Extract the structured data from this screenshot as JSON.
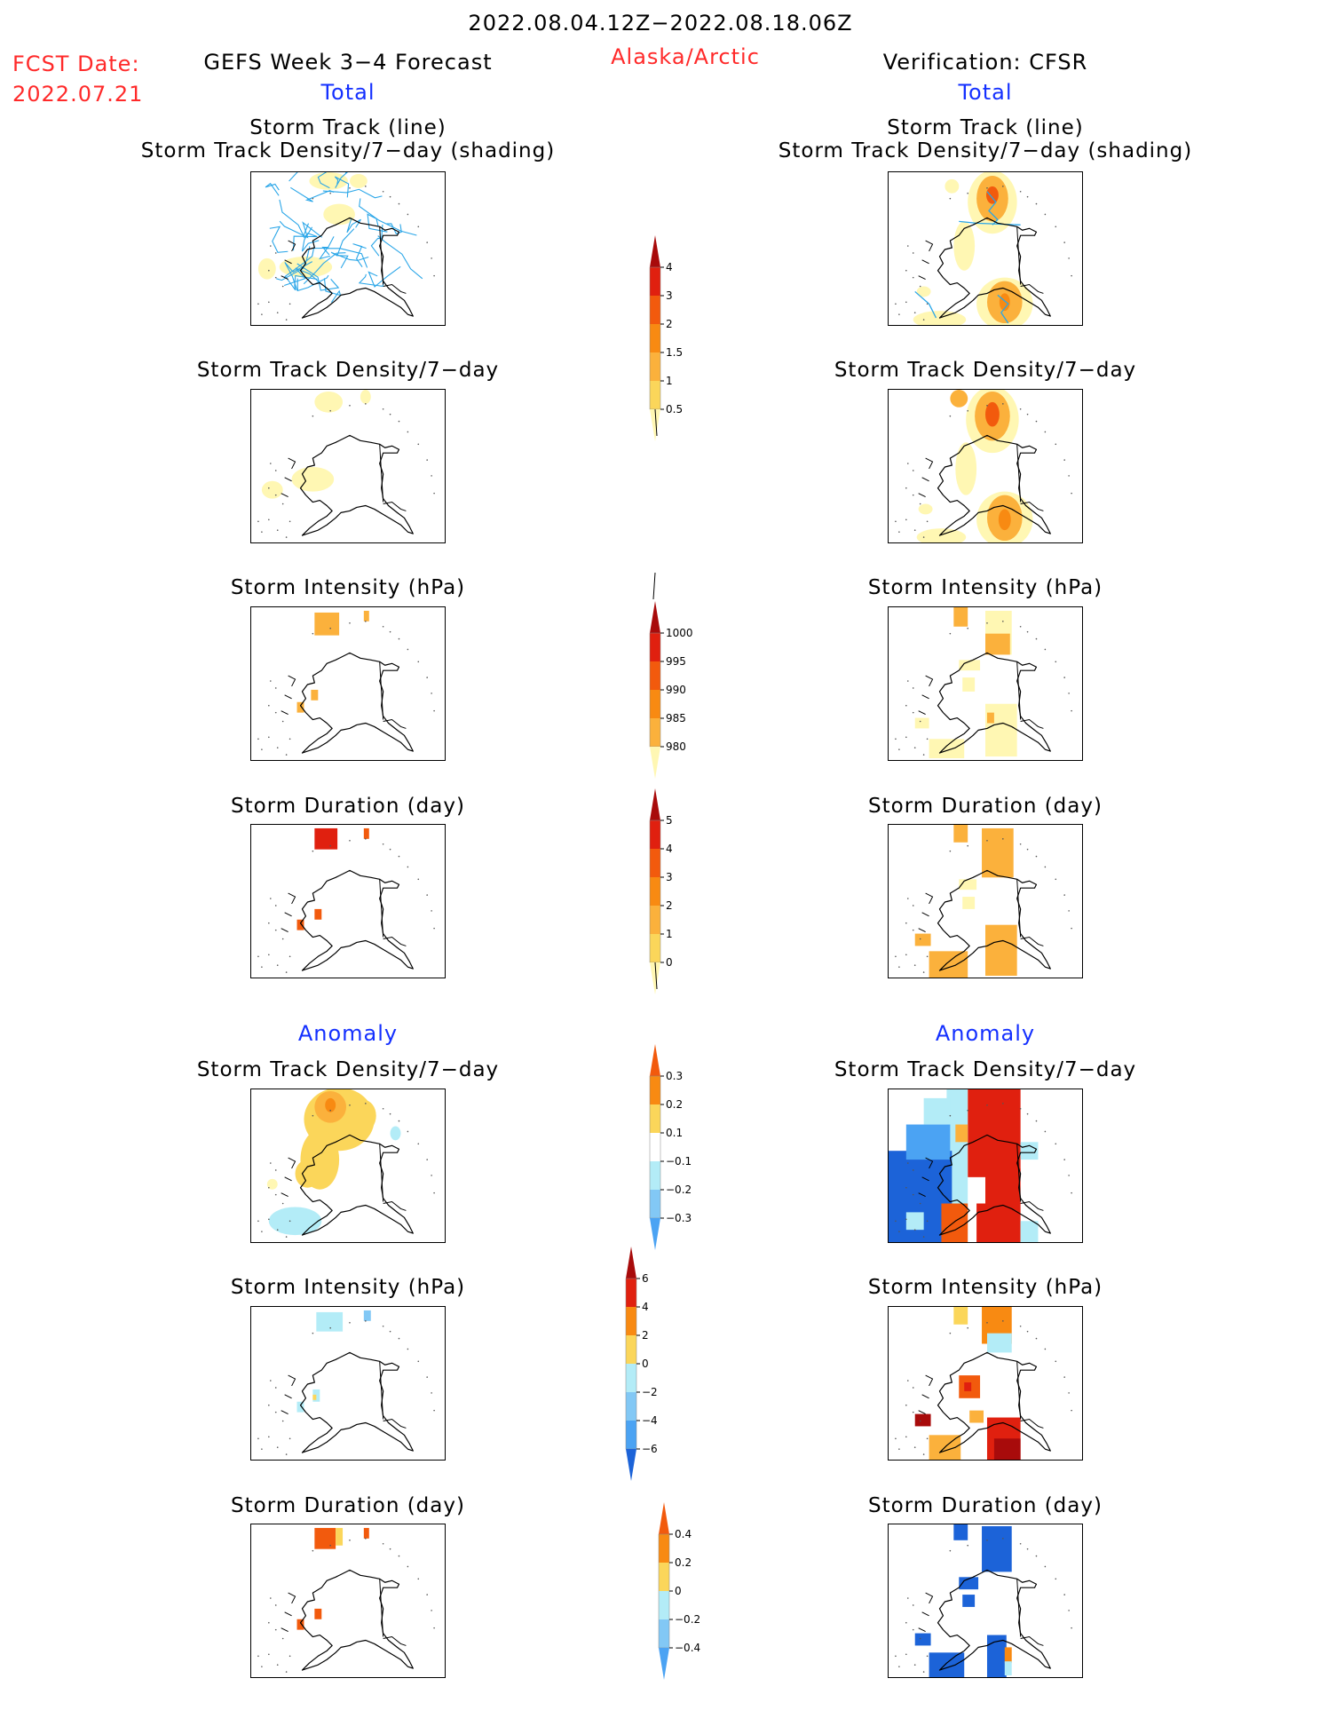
{
  "header": {
    "period": "2022.08.04.12Z−2022.08.18.06Z",
    "fcst_label": "FCST Date:",
    "fcst_date": "2022.07.21",
    "model": "GEFS Week 3−4 Forecast",
    "region": "Alaska/Arctic",
    "verification": "Verification: CFSR",
    "total_left": "Total",
    "total_right": "Total",
    "anomaly_left": "Anomaly",
    "anomaly_right": "Anomaly"
  },
  "panels": {
    "track_title_1": "Storm Track (line)",
    "track_title_2": "Storm Track Density/7−day (shading)",
    "density": "Storm Track Density/7−day",
    "intensity": "Storm Intensity (hPa)",
    "duration": "Storm Duration (day)"
  },
  "colors": {
    "yellow_light": "#fff7b3",
    "yellow": "#fbd65a",
    "orange_light": "#fbb13c",
    "orange": "#f88a12",
    "orange_dark": "#f25a0d",
    "red": "#e0200f",
    "dark_red": "#a80b0b",
    "blue_light": "#b3ecf7",
    "blue": "#82c8f5",
    "blue_mid": "#4ba3f3",
    "blue_dark": "#1c63d8",
    "track_line": "#2aa6e8"
  },
  "chart_data": [
    {
      "type": "heatmap",
      "name": "colorbar_track_density_total",
      "levels": [
        0.5,
        1,
        1.5,
        2,
        3,
        4
      ],
      "tick_labels": [
        "0.5",
        "1",
        "1.5",
        "2",
        "3",
        "4"
      ]
    },
    {
      "type": "heatmap",
      "name": "colorbar_intensity_total",
      "levels": [
        1000,
        995,
        990,
        985,
        980
      ],
      "tick_labels": [
        "1000",
        "995",
        "990",
        "985",
        "980"
      ]
    },
    {
      "type": "heatmap",
      "name": "colorbar_duration_total",
      "levels": [
        0,
        1,
        2,
        3,
        4,
        5
      ],
      "tick_labels": [
        "5",
        "4",
        "3",
        "2",
        "1",
        "0"
      ]
    },
    {
      "type": "heatmap",
      "name": "colorbar_density_anomaly",
      "levels": [
        -0.3,
        -0.2,
        -0.1,
        0.1,
        0.2,
        0.3
      ],
      "tick_labels": [
        "0.3",
        "0.2",
        "0.1",
        "−0.1",
        "−0.2",
        "−0.3"
      ]
    },
    {
      "type": "heatmap",
      "name": "colorbar_intensity_anomaly",
      "levels": [
        -6,
        -4,
        -2,
        0,
        2,
        4,
        6
      ],
      "tick_labels": [
        "6",
        "4",
        "2",
        "0",
        "−2",
        "−4",
        "−6"
      ]
    },
    {
      "type": "heatmap",
      "name": "colorbar_duration_anomaly",
      "levels": [
        -0.4,
        -0.2,
        0,
        0.2,
        0.4
      ],
      "tick_labels": [
        "0.4",
        "0.2",
        "0",
        "−0.2",
        "−0.4"
      ]
    }
  ]
}
